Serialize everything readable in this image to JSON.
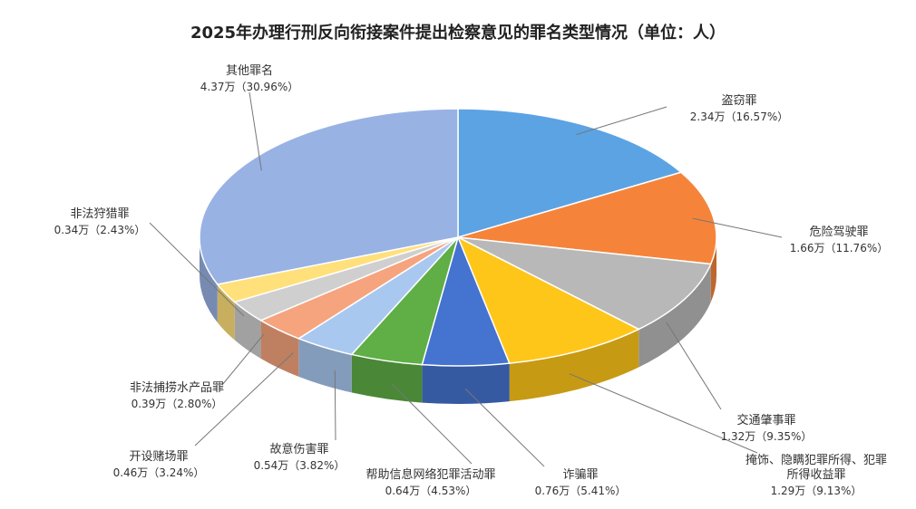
{
  "chart_data": {
    "type": "pie",
    "title": "2025年办理行刑反向衔接案件提出检察意见的罪名类型情况（单位：人）",
    "slices": [
      {
        "name": "盗窃罪",
        "value": 2.34,
        "percent": 16.57,
        "display": "2.34万（16.57%）",
        "color": "#5ca3e4"
      },
      {
        "name": "危险驾驶罪",
        "value": 1.66,
        "percent": 11.76,
        "display": "1.66万（11.76%）",
        "color": "#f5843a"
      },
      {
        "name": "交通肇事罪",
        "value": 1.32,
        "percent": 9.35,
        "display": "1.32万（9.35%）",
        "color": "#b8b8b8"
      },
      {
        "name": "掩饰、隐瞒犯罪所得、犯罪所得收益罪",
        "name_lines": [
          "掩饰、隐瞒犯罪所得、犯罪",
          "所得收益罪"
        ],
        "value": 1.29,
        "percent": 9.13,
        "display": "1.29万（9.13%）",
        "color": "#ffc61a"
      },
      {
        "name": "诈骗罪",
        "value": 0.76,
        "percent": 5.41,
        "display": "0.76万（5.41%）",
        "color": "#4473d0"
      },
      {
        "name": "帮助信息网络犯罪活动罪",
        "value": 0.64,
        "percent": 4.53,
        "display": "0.64万（4.53%）",
        "color": "#5fae46"
      },
      {
        "name": "故意伤害罪",
        "value": 0.54,
        "percent": 3.82,
        "display": "0.54万（3.82%）",
        "color": "#a9c8f0"
      },
      {
        "name": "开设赌场罪",
        "value": 0.46,
        "percent": 3.24,
        "display": "0.46万（3.24%）",
        "color": "#f5a47e"
      },
      {
        "name": "非法捕捞水产品罪",
        "value": 0.39,
        "percent": 2.8,
        "display": "0.39万（2.80%）",
        "color": "#cfcfcf"
      },
      {
        "name": "非法狩猎罪",
        "value": 0.34,
        "percent": 2.43,
        "display": "0.34万（2.43%）",
        "color": "#ffe07a"
      },
      {
        "name": "其他罪名",
        "value": 4.37,
        "percent": 30.96,
        "display": "4.37万（30.96%）",
        "color": "#98b2e4"
      }
    ]
  }
}
